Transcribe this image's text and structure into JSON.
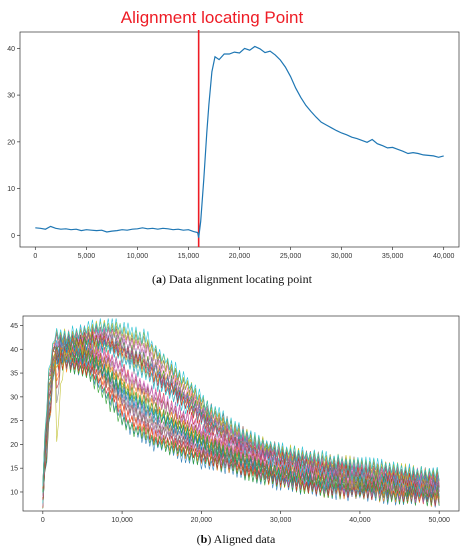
{
  "chart_data": [
    {
      "type": "line",
      "annotation": "Alignment locating Point",
      "caption_letter": "a",
      "caption_text": " Data alignment locating point",
      "xlim": [
        -1500,
        41500
      ],
      "ylim": [
        -2.5,
        43.5
      ],
      "xticks": [
        0,
        5000,
        10000,
        15000,
        20000,
        25000,
        30000,
        35000,
        40000
      ],
      "xtick_labels": [
        "0",
        "5,000",
        "10,000",
        "15,000",
        "20,000",
        "25,000",
        "30,000",
        "35,000",
        "40,000"
      ],
      "yticks": [
        0,
        10,
        20,
        30,
        40
      ],
      "ytick_labels": [
        "0",
        "10",
        "20",
        "30",
        "40"
      ],
      "grid": false,
      "alignment_x": 16000,
      "series_color": "#1f77b4",
      "alignment_color": "#ee1c25",
      "x": [
        0,
        500,
        1000,
        1500,
        2000,
        2500,
        3000,
        3500,
        4000,
        4500,
        5000,
        5500,
        6000,
        6500,
        7000,
        7500,
        8000,
        8500,
        9000,
        9500,
        10000,
        10500,
        11000,
        11500,
        12000,
        12500,
        13000,
        13500,
        14000,
        14500,
        15000,
        15500,
        15900,
        16000,
        16200,
        16500,
        16800,
        17000,
        17300,
        17600,
        18000,
        18500,
        19000,
        19500,
        20000,
        20500,
        21000,
        21500,
        22000,
        22500,
        23000,
        23500,
        24000,
        24500,
        25000,
        25500,
        26000,
        26500,
        27000,
        27500,
        28000,
        28500,
        29000,
        29500,
        30000,
        30500,
        31000,
        31500,
        32000,
        32500,
        33000,
        33500,
        34000,
        34500,
        35000,
        35500,
        36000,
        36500,
        37000,
        37500,
        38000,
        38500,
        39000,
        39500,
        40000
      ],
      "y": [
        1.6,
        1.5,
        1.3,
        1.9,
        1.5,
        1.3,
        1.4,
        1.2,
        1.3,
        1.0,
        1.2,
        1.1,
        1.0,
        1.1,
        0.7,
        0.9,
        1.0,
        1.2,
        1.1,
        1.3,
        1.4,
        1.6,
        1.4,
        1.5,
        1.3,
        1.5,
        1.4,
        1.2,
        1.3,
        1.1,
        1.2,
        0.8,
        0.6,
        -0.5,
        3.0,
        12.0,
        22.0,
        28.0,
        35.0,
        38.2,
        37.6,
        38.8,
        38.8,
        39.2,
        39.0,
        40.0,
        39.6,
        40.4,
        39.9,
        39.1,
        39.4,
        38.6,
        37.5,
        36.0,
        34.0,
        31.5,
        29.5,
        27.8,
        26.5,
        25.3,
        24.2,
        23.6,
        23.0,
        22.4,
        21.9,
        21.5,
        21.0,
        20.7,
        20.3,
        19.9,
        20.5,
        19.6,
        19.2,
        18.7,
        18.8,
        18.4,
        18.0,
        17.5,
        17.7,
        17.5,
        17.2,
        17.1,
        17.0,
        16.7,
        17.0
      ]
    },
    {
      "type": "line",
      "caption_letter": "b",
      "caption_text": " Aligned data",
      "xlim": [
        -2500,
        52500
      ],
      "ylim": [
        6.0,
        47.0
      ],
      "xticks": [
        0,
        10000,
        20000,
        30000,
        40000,
        50000
      ],
      "xtick_labels": [
        "0",
        "10,000",
        "20,000",
        "30,000",
        "40,000",
        "50,000"
      ],
      "yticks": [
        10,
        15,
        20,
        25,
        30,
        35,
        40,
        45
      ],
      "ytick_labels": [
        "10",
        "15",
        "20",
        "25",
        "30",
        "35",
        "40",
        "45"
      ],
      "grid": false,
      "series_count": 30,
      "envelope": {
        "x": [
          0,
          700,
          1500,
          3000,
          5000,
          7000,
          9000,
          11000,
          13000,
          15000,
          18000,
          21000,
          24000,
          27000,
          30000,
          33000,
          36000,
          40000,
          44000,
          48000,
          50000
        ],
        "low": [
          7.5,
          22.0,
          37.0,
          36.5,
          36.0,
          34.0,
          29.0,
          24.0,
          21.0,
          19.5,
          17.5,
          16.0,
          15.0,
          13.5,
          12.0,
          11.0,
          10.0,
          9.5,
          9.0,
          8.5,
          8.0
        ],
        "high": [
          13.0,
          35.0,
          43.0,
          43.0,
          44.0,
          45.0,
          45.5,
          44.0,
          43.0,
          39.0,
          34.0,
          28.0,
          24.0,
          21.0,
          19.0,
          18.0,
          17.0,
          16.0,
          15.0,
          14.0,
          14.0
        ]
      },
      "palette": [
        "#1f77b4",
        "#ff7f0e",
        "#2ca02c",
        "#d62728",
        "#9467bd",
        "#8c564b",
        "#e377c2",
        "#7f7f7f",
        "#bcbd22",
        "#17becf"
      ]
    }
  ]
}
